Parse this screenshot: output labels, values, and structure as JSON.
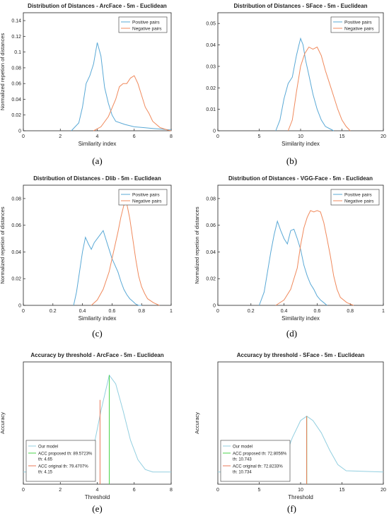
{
  "captions": [
    "(a)",
    "(b)",
    "(c)",
    "(d)",
    "(e)",
    "(f)"
  ],
  "colors": {
    "positive": "#5aa9d6",
    "negative": "#f08a5d",
    "our_model": "#93cfe0",
    "acc_proposed": "#49d449",
    "acc_original": "#e8785a"
  },
  "chart_data": [
    {
      "type": "line",
      "title": "Distribution of Distances - ArcFace - 5m - Euclidean",
      "xlabel": "Similarity index",
      "ylabel": "Normalized repetion of distances",
      "xlim": [
        0,
        8
      ],
      "ylim": [
        0,
        0.15
      ],
      "xticks": [
        0,
        2,
        4,
        6,
        8
      ],
      "xtick_labels": [
        "0",
        "2",
        "4",
        "6",
        "8"
      ],
      "yticks": [
        0,
        0.02,
        0.04,
        0.06,
        0.08,
        0.1,
        0.12,
        0.14
      ],
      "ytick_labels": [
        "0",
        "0.02",
        "0.04",
        "0.06",
        "0.08",
        "0.1",
        "0.12",
        "0.14"
      ],
      "legend_position": "top-right",
      "series": [
        {
          "name": "Positive pairs",
          "color": "#5aa9d6",
          "x": [
            2.6,
            3.0,
            3.2,
            3.4,
            3.6,
            3.8,
            4.0,
            4.2,
            4.4,
            4.6,
            4.8,
            5.0,
            5.5,
            6.0,
            6.5,
            7.0,
            7.5,
            8.0
          ],
          "y": [
            0,
            0.01,
            0.03,
            0.06,
            0.07,
            0.085,
            0.112,
            0.095,
            0.055,
            0.035,
            0.02,
            0.012,
            0.008,
            0.005,
            0.004,
            0.003,
            0.002,
            0.001
          ]
        },
        {
          "name": "Negative pairs",
          "color": "#f08a5d",
          "x": [
            3.8,
            4.2,
            4.6,
            5.0,
            5.2,
            5.4,
            5.6,
            5.8,
            6.0,
            6.2,
            6.4,
            6.6,
            6.8,
            7.0,
            7.4,
            7.8,
            8.0
          ],
          "y": [
            0,
            0.005,
            0.018,
            0.04,
            0.056,
            0.06,
            0.06,
            0.067,
            0.07,
            0.06,
            0.045,
            0.03,
            0.022,
            0.012,
            0.004,
            0.001,
            0
          ]
        }
      ]
    },
    {
      "type": "line",
      "title": "Distribution of Distances - SFace - 5m - Euclidean",
      "xlabel": "Similarity index",
      "ylabel": "",
      "xlim": [
        0,
        20
      ],
      "ylim": [
        0,
        0.055
      ],
      "xticks": [
        0,
        5,
        10,
        15,
        20
      ],
      "xtick_labels": [
        "0",
        "5",
        "10",
        "15",
        "20"
      ],
      "yticks": [
        0,
        0.01,
        0.02,
        0.03,
        0.04,
        0.05
      ],
      "ytick_labels": [
        "0",
        "0.01",
        "0.02",
        "0.03",
        "0.04",
        "0.05"
      ],
      "legend_position": "top-right",
      "series": [
        {
          "name": "Positive pairs",
          "color": "#5aa9d6",
          "x": [
            7.0,
            7.5,
            8.0,
            8.5,
            9.0,
            9.5,
            9.8,
            10.0,
            10.3,
            10.6,
            11.0,
            11.5,
            12.0,
            12.5,
            13.0,
            13.5,
            14.0
          ],
          "y": [
            0,
            0.005,
            0.015,
            0.022,
            0.025,
            0.035,
            0.04,
            0.043,
            0.04,
            0.033,
            0.026,
            0.017,
            0.01,
            0.005,
            0.002,
            0.001,
            0
          ]
        },
        {
          "name": "Negative pairs",
          "color": "#f08a5d",
          "x": [
            8.5,
            9.0,
            9.5,
            10.0,
            10.5,
            11.0,
            11.5,
            12.0,
            12.5,
            13.0,
            13.5,
            14.0,
            14.5,
            15.0,
            15.5,
            16.0
          ],
          "y": [
            0,
            0.005,
            0.018,
            0.03,
            0.036,
            0.039,
            0.038,
            0.039,
            0.035,
            0.028,
            0.022,
            0.016,
            0.01,
            0.005,
            0.002,
            0
          ]
        }
      ]
    },
    {
      "type": "line",
      "title": "Distribution of Distances - Dlib - 5m - Euclidean",
      "xlabel": "Similarity index",
      "ylabel": "Normalized repetion of distances",
      "xlim": [
        0,
        1
      ],
      "ylim": [
        0,
        0.09
      ],
      "xticks": [
        0,
        0.2,
        0.4,
        0.6,
        0.8,
        1
      ],
      "xtick_labels": [
        "0",
        "0.2",
        "0.4",
        "0.6",
        "0.8",
        "1"
      ],
      "yticks": [
        0,
        0.02,
        0.04,
        0.06,
        0.08
      ],
      "ytick_labels": [
        "0",
        "0.02",
        "0.04",
        "0.06",
        "0.08"
      ],
      "legend_position": "top-right",
      "series": [
        {
          "name": "Positive pairs",
          "color": "#5aa9d6",
          "x": [
            0.34,
            0.36,
            0.38,
            0.4,
            0.42,
            0.44,
            0.46,
            0.48,
            0.5,
            0.52,
            0.54,
            0.56,
            0.58,
            0.6,
            0.62,
            0.64,
            0.66,
            0.68,
            0.7,
            0.72,
            0.74,
            0.76,
            0.78,
            0.8
          ],
          "y": [
            0,
            0.01,
            0.025,
            0.04,
            0.051,
            0.046,
            0.042,
            0.047,
            0.05,
            0.053,
            0.056,
            0.049,
            0.042,
            0.035,
            0.03,
            0.025,
            0.018,
            0.012,
            0.008,
            0.005,
            0.003,
            0.001,
            0,
            0
          ]
        },
        {
          "name": "Negative pairs",
          "color": "#f08a5d",
          "x": [
            0.46,
            0.5,
            0.54,
            0.58,
            0.6,
            0.62,
            0.64,
            0.66,
            0.68,
            0.7,
            0.72,
            0.74,
            0.76,
            0.78,
            0.8,
            0.82,
            0.84,
            0.88,
            0.92
          ],
          "y": [
            0,
            0.004,
            0.012,
            0.025,
            0.035,
            0.045,
            0.055,
            0.066,
            0.075,
            0.076,
            0.065,
            0.05,
            0.035,
            0.022,
            0.014,
            0.009,
            0.005,
            0.002,
            0
          ]
        }
      ]
    },
    {
      "type": "line",
      "title": "Distribution of Distances - VGG-Face - 5m - Euclidean",
      "xlabel": "Similarity index",
      "ylabel": "Normalized repetion of distances",
      "xlim": [
        0,
        1
      ],
      "ylim": [
        0,
        0.09
      ],
      "xticks": [
        0,
        0.2,
        0.4,
        0.6,
        0.8,
        1
      ],
      "xtick_labels": [
        "0",
        "0.2",
        "0.4",
        "0.6",
        "0.8",
        "1"
      ],
      "yticks": [
        0,
        0.02,
        0.04,
        0.06,
        0.08
      ],
      "ytick_labels": [
        "0",
        "0.02",
        "0.04",
        "0.06",
        "0.08"
      ],
      "legend_position": "top-right",
      "series": [
        {
          "name": "Positive pairs",
          "color": "#5aa9d6",
          "x": [
            0.25,
            0.28,
            0.3,
            0.32,
            0.34,
            0.36,
            0.38,
            0.4,
            0.42,
            0.44,
            0.46,
            0.48,
            0.5,
            0.52,
            0.54,
            0.56,
            0.58,
            0.6,
            0.62,
            0.64,
            0.66
          ],
          "y": [
            0,
            0.01,
            0.025,
            0.04,
            0.053,
            0.063,
            0.056,
            0.05,
            0.046,
            0.056,
            0.057,
            0.05,
            0.042,
            0.03,
            0.022,
            0.016,
            0.012,
            0.007,
            0.004,
            0.002,
            0
          ]
        },
        {
          "name": "Negative pairs",
          "color": "#f08a5d",
          "x": [
            0.35,
            0.4,
            0.44,
            0.48,
            0.5,
            0.52,
            0.54,
            0.56,
            0.58,
            0.6,
            0.62,
            0.64,
            0.66,
            0.68,
            0.7,
            0.72,
            0.74,
            0.78,
            0.82
          ],
          "y": [
            0,
            0.004,
            0.012,
            0.028,
            0.045,
            0.058,
            0.066,
            0.071,
            0.07,
            0.071,
            0.07,
            0.062,
            0.05,
            0.037,
            0.022,
            0.012,
            0.006,
            0.002,
            0
          ]
        }
      ]
    },
    {
      "type": "line",
      "title": "Accuracy by threshold - ArcFace - 5m - Euclidean",
      "xlabel": "Threshold",
      "ylabel": "Accuracy",
      "xlim": [
        0,
        8
      ],
      "ylim": [
        0.45,
        0.95
      ],
      "xticks": [
        0,
        2,
        4,
        6,
        8
      ],
      "xtick_labels": [
        "0",
        "2",
        "4",
        "6",
        "8"
      ],
      "yticks": [],
      "ytick_labels": [],
      "legend_position": "bottom-left",
      "series": [
        {
          "name": "Our model",
          "color": "#93cfe0",
          "x": [
            0,
            2,
            3.0,
            3.4,
            3.8,
            4.2,
            4.65,
            5.0,
            5.4,
            5.8,
            6.2,
            6.6,
            7.0,
            8
          ],
          "y": [
            0.5,
            0.5,
            0.503,
            0.52,
            0.6,
            0.75,
            0.8957,
            0.86,
            0.75,
            0.63,
            0.55,
            0.51,
            0.5,
            0.5
          ]
        },
        {
          "name": "ACC proposed th: 89.5723%",
          "name2": "th: 4.65",
          "color": "#49d449",
          "kind": "vline",
          "x": 4.65,
          "y": [
            0.45,
            0.8957
          ]
        },
        {
          "name": "ACC original th: 79.4707%",
          "name2": "th: 4.15",
          "color": "#e8785a",
          "kind": "vline",
          "x": 4.15,
          "y": [
            0.45,
            0.7947
          ]
        }
      ]
    },
    {
      "type": "line",
      "title": "Accuracy by threshold - SFace - 5m - Euclidean",
      "xlabel": "Threshold",
      "ylabel": "Accuracy",
      "xlim": [
        0,
        20
      ],
      "ylim": [
        0.45,
        0.95
      ],
      "xticks": [
        0,
        5,
        10,
        15,
        20
      ],
      "xtick_labels": [
        "0",
        "5",
        "10",
        "15",
        "20"
      ],
      "yticks": [],
      "ytick_labels": [],
      "legend_position": "bottom-left",
      "series": [
        {
          "name": "Our model",
          "color": "#93cfe0",
          "x": [
            0,
            5,
            7.0,
            8.0,
            9.0,
            10.0,
            10.74,
            11.5,
            12.5,
            13.5,
            14.5,
            15.5,
            20
          ],
          "y": [
            0.5,
            0.5,
            0.505,
            0.55,
            0.64,
            0.71,
            0.7281,
            0.71,
            0.66,
            0.59,
            0.53,
            0.505,
            0.5
          ]
        },
        {
          "name": "ACC proposed th: 72.8056%",
          "name2": "th: 10.743",
          "color": "#49d449",
          "kind": "vline",
          "x": 10.743,
          "y": [
            0.45,
            0.7281
          ]
        },
        {
          "name": "ACC original th: 72.8233%",
          "name2": "th: 10.734",
          "color": "#e8785a",
          "kind": "vline",
          "x": 10.734,
          "y": [
            0.45,
            0.7282
          ]
        }
      ]
    }
  ]
}
